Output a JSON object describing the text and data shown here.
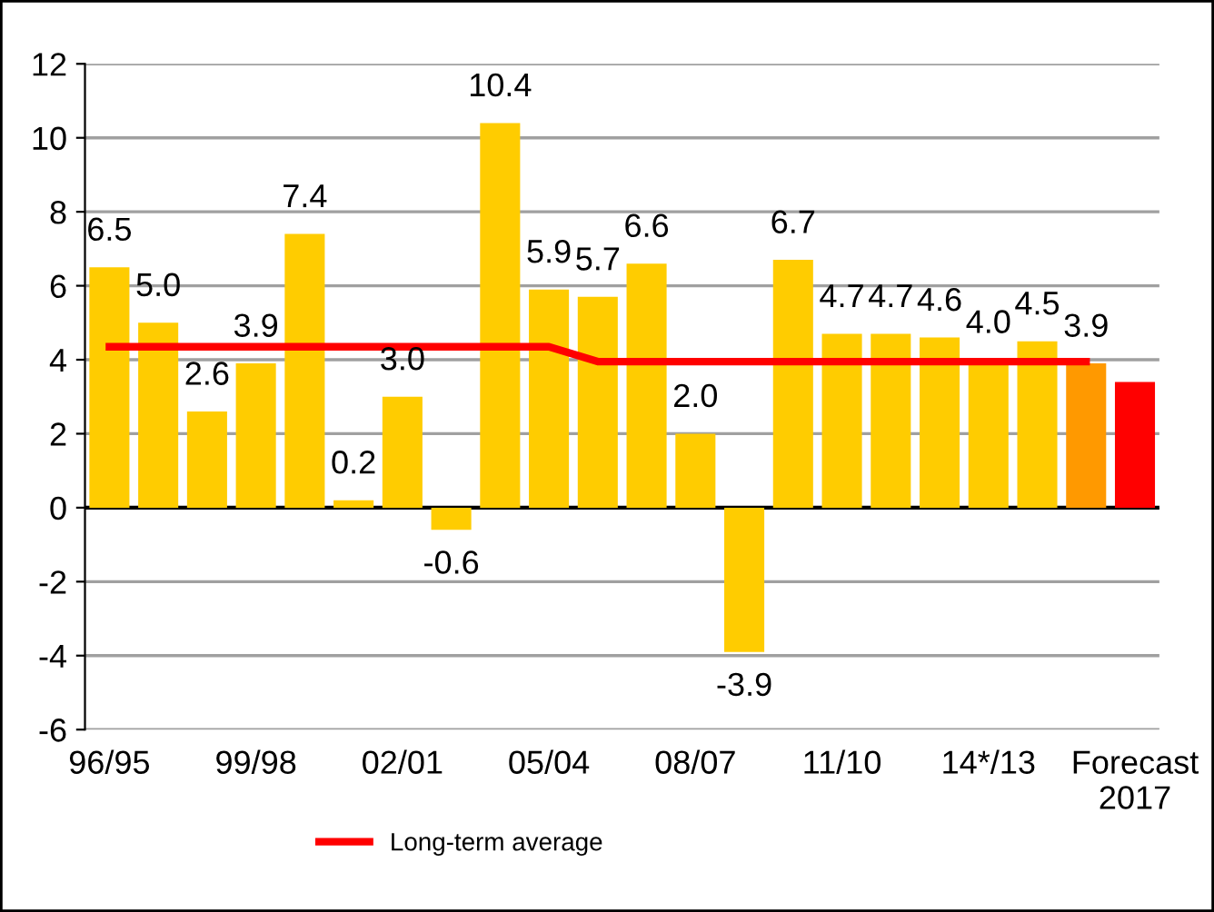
{
  "chart_data": {
    "type": "bar",
    "categories": [
      "96/95",
      null,
      null,
      "99/98",
      null,
      null,
      "02/01",
      null,
      null,
      "05/04",
      null,
      null,
      "08/07",
      null,
      null,
      "11/10",
      null,
      null,
      "14*/13",
      null,
      null,
      "Forecast\n2017"
    ],
    "series": [
      {
        "colors": [
          "#ffcc00",
          "#ffcc00",
          "#ffcc00",
          "#ffcc00",
          "#ffcc00",
          "#ffcc00",
          "#ffcc00",
          "#ffcc00",
          "#ffcc00",
          "#ffcc00",
          "#ffcc00",
          "#ffcc00",
          "#ffcc00",
          "#ffcc00",
          "#ffcc00",
          "#ffcc00",
          "#ffcc00",
          "#ffcc00",
          "#ffcc00",
          "#ffcc00",
          "#ff9900",
          "#ff0000"
        ],
        "values": [
          6.5,
          5.0,
          2.6,
          3.9,
          7.4,
          0.2,
          3.0,
          -0.6,
          10.4,
          5.9,
          5.7,
          6.6,
          2.0,
          -3.9,
          6.7,
          4.7,
          4.7,
          4.6,
          4.0,
          4.5,
          3.9,
          3.4
        ],
        "value_labels": [
          "6.5",
          "5.0",
          "2.6",
          "3.9",
          "7.4",
          "0.2",
          "3.0",
          "-0.6",
          "10.4",
          "5.9",
          "5.7",
          "6.6",
          "2.0",
          "-3.9",
          "6.7",
          "4.7",
          "4.7",
          "4.6",
          "4.0",
          "4.5",
          "3.9",
          null
        ]
      },
      {
        "type": "line",
        "name": "Long-term average",
        "color": "#ff0000",
        "values": [
          4.35,
          4.35,
          4.35,
          4.35,
          4.35,
          4.35,
          4.35,
          4.35,
          4.35,
          4.35,
          3.95,
          3.95,
          3.95,
          3.95,
          3.95,
          3.95,
          3.95,
          3.95,
          3.95,
          3.95,
          3.95,
          null
        ]
      }
    ],
    "ylim": [
      -6,
      12
    ],
    "yticks": [
      -6,
      -4,
      -2,
      0,
      2,
      4,
      6,
      8,
      10,
      12
    ],
    "grid": "y",
    "legend": "bottom"
  }
}
